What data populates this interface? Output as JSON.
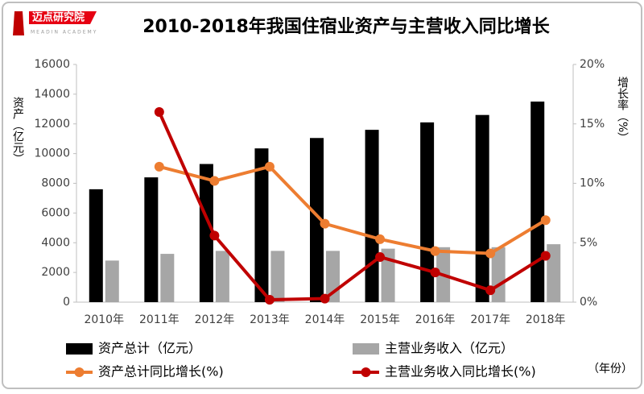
{
  "logo": {
    "name": "迈点研究院",
    "subtitle": "MEADIN ACADEMY"
  },
  "chart_data": {
    "type": "bar",
    "title": "2010-2018年我国住宿业资产与主营收入同比增长",
    "y_label": "资产（亿元）",
    "y2_label": "增长率（%）",
    "x_label": "（年份）",
    "categories": [
      "2010年",
      "2011年",
      "2012年",
      "2013年",
      "2014年",
      "2015年",
      "2016年",
      "2017年",
      "2018年"
    ],
    "series": [
      {
        "name": "资产总计（亿元）",
        "type": "bar",
        "color": "#000000",
        "values": [
          7600,
          8400,
          9300,
          10350,
          11050,
          11600,
          12100,
          12600,
          13500
        ]
      },
      {
        "name": "主营业务收入（亿元）",
        "type": "bar",
        "color": "#a6a6a6",
        "values": [
          2800,
          3250,
          3450,
          3450,
          3450,
          3600,
          3700,
          3700,
          3900
        ]
      },
      {
        "name": "资产总计同比增长(%)",
        "type": "line",
        "axis": "y2",
        "color": "#ed7d31",
        "values": [
          null,
          11.4,
          10.2,
          11.4,
          6.6,
          5.3,
          4.3,
          4.1,
          6.9
        ]
      },
      {
        "name": "主营业务收入同比增长(%)",
        "type": "line",
        "axis": "y2",
        "color": "#c00000",
        "values": [
          null,
          16.0,
          5.6,
          0.2,
          0.3,
          3.8,
          2.5,
          1.0,
          3.9
        ]
      }
    ],
    "ylim": [
      0,
      16000
    ],
    "yticks": [
      0,
      2000,
      4000,
      6000,
      8000,
      10000,
      12000,
      14000,
      16000
    ],
    "y2lim": [
      0,
      20
    ],
    "y2ticks": [
      {
        "value": 0,
        "label": "0%"
      },
      {
        "value": 5,
        "label": "5%"
      },
      {
        "value": 10,
        "label": "10%"
      },
      {
        "value": 15,
        "label": "15%"
      },
      {
        "value": 20,
        "label": "20%"
      }
    ]
  }
}
